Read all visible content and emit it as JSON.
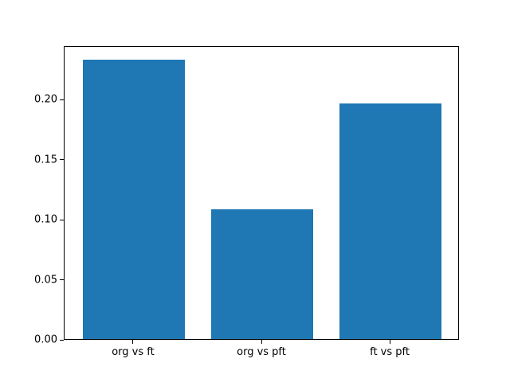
{
  "chart_data": {
    "type": "bar",
    "title": "",
    "xlabel": "",
    "ylabel": "",
    "categories": [
      "org vs ft",
      "org vs pft",
      "ft vs pft"
    ],
    "values": [
      0.233,
      0.108,
      0.196
    ],
    "yticks": [
      0.0,
      0.05,
      0.1,
      0.15,
      0.2
    ],
    "ytick_labels": [
      "0.00",
      "0.05",
      "0.10",
      "0.15",
      "0.20"
    ],
    "ylim": [
      0,
      0.2447
    ],
    "xlim": [
      -0.54,
      2.54
    ],
    "bar_width": 0.8,
    "bar_color": "#1f77b4",
    "spine_color": "#000000",
    "background": "#ffffff",
    "grid": false,
    "legend": null
  }
}
